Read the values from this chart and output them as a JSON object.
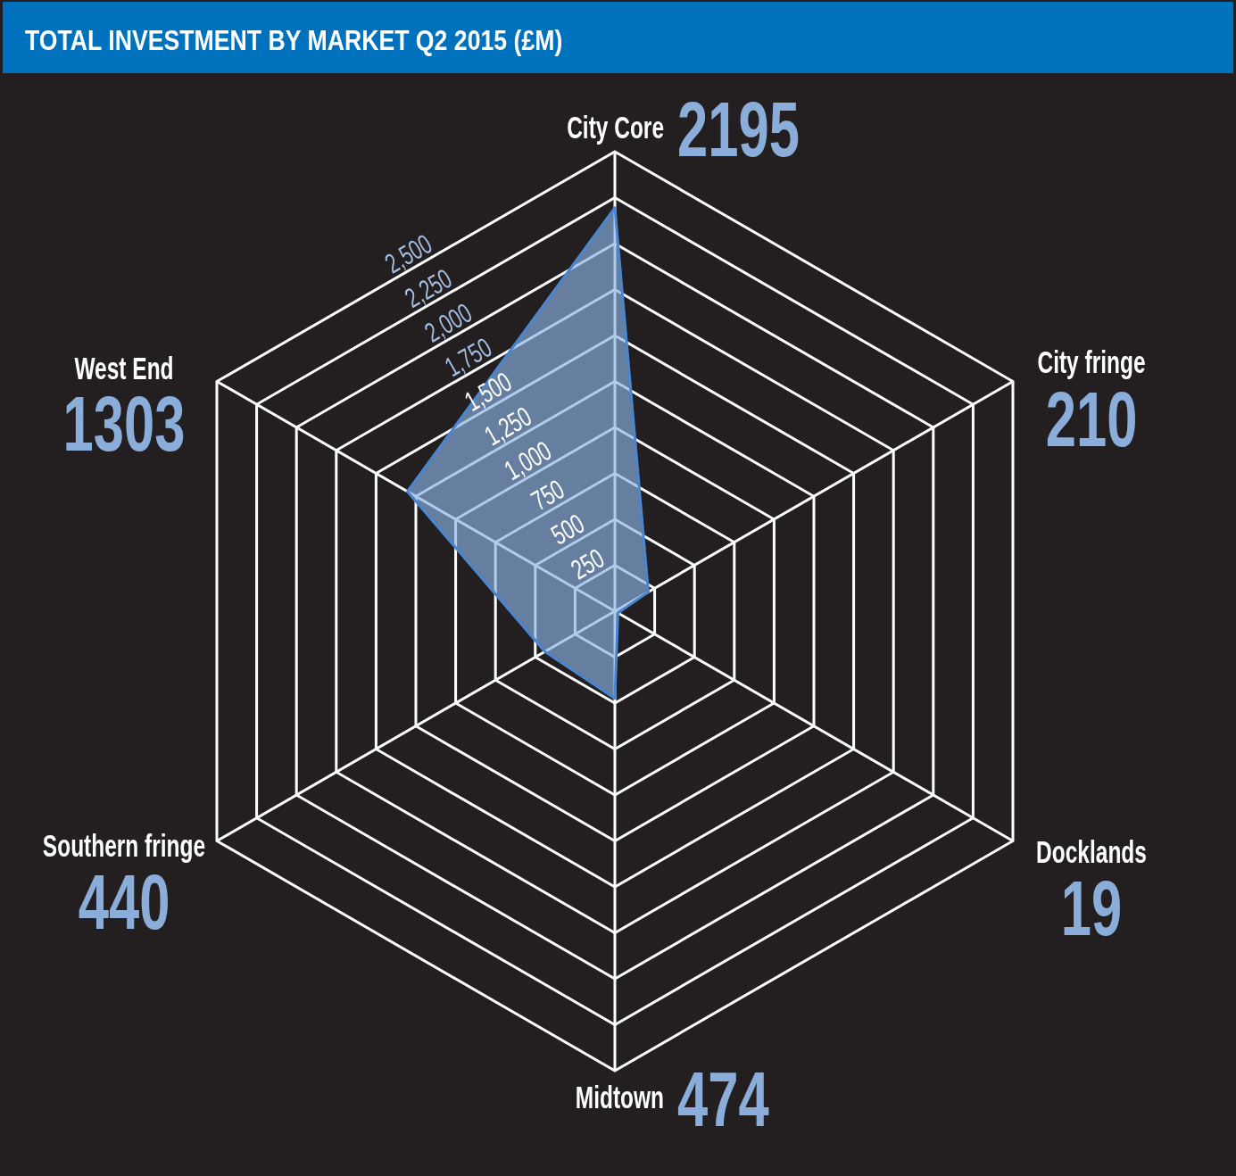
{
  "chart_data": {
    "type": "radar",
    "title": "TOTAL INVESTMENT BY MARKET Q2 2015 (£M)",
    "categories": [
      "City Core",
      "City fringe",
      "Docklands",
      "Midtown",
      "Southern fringe",
      "West End"
    ],
    "series": [
      {
        "color": "#4a86cf",
        "values": [
          2195,
          210,
          19,
          474,
          440,
          1303
        ]
      }
    ],
    "ylim": [
      0,
      2500
    ],
    "yticks": [
      250,
      500,
      750,
      {
        "value": 1000,
        "label": "1,000"
      },
      {
        "value": 1250,
        "label": "1,250"
      },
      {
        "value": 1500,
        "label": "1,500"
      },
      {
        "value": 1750,
        "label": "1,750"
      },
      {
        "value": 2000,
        "label": "2,000"
      },
      {
        "value": 2250,
        "label": "2,250"
      },
      {
        "value": 2500,
        "label": "2,500"
      }
    ],
    "grid": true,
    "annotations": [
      "2195",
      "210",
      "19",
      "474",
      "440",
      "1303"
    ]
  }
}
